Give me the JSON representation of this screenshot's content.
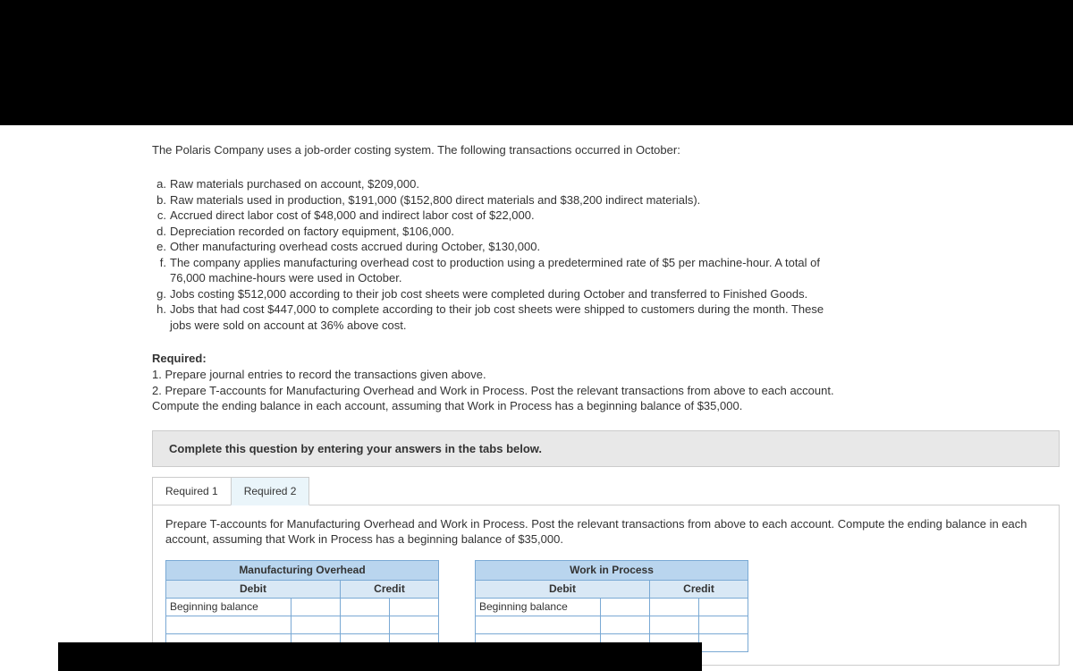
{
  "intro": "The Polaris Company uses a job-order costing system. The following transactions occurred in October:",
  "transactions": {
    "a": "Raw materials purchased on account, $209,000.",
    "b": "Raw materials used in production, $191,000 ($152,800 direct materials and $38,200 indirect materials).",
    "c": "Accrued direct labor cost of $48,000 and indirect labor cost of $22,000.",
    "d": "Depreciation recorded on factory equipment, $106,000.",
    "e": "Other manufacturing overhead costs accrued during October, $130,000.",
    "f1": "The company applies manufacturing overhead cost to production using a predetermined rate of $5 per machine-hour. A total of",
    "f2": "76,000 machine-hours were used in October.",
    "g": "Jobs costing $512,000 according to their job cost sheets were completed during October and transferred to Finished Goods.",
    "h1": "Jobs that had cost $447,000 to complete according to their job cost sheets were shipped to customers during the month. These",
    "h2": "jobs were sold on account at 36% above cost."
  },
  "required": {
    "heading": "Required:",
    "r1": "1. Prepare journal entries to record the transactions given above.",
    "r2": "2. Prepare T-accounts for Manufacturing Overhead and Work in Process. Post the relevant transactions from above to each account.",
    "r3": "Compute the ending balance in each account, assuming that Work in Process has a beginning balance of $35,000."
  },
  "grayBand": "Complete this question by entering your answers in the tabs below.",
  "tabs": {
    "t1": "Required 1",
    "t2": "Required 2"
  },
  "tabInstruction": "Prepare T-accounts for Manufacturing Overhead and Work in Process. Post the relevant transactions from above to each account. Compute the ending balance in each account, assuming that Work in Process has a beginning balance of $35,000.",
  "tAccount1": {
    "title": "Manufacturing Overhead",
    "debit": "Debit",
    "credit": "Credit",
    "begBal": "Beginning balance"
  },
  "tAccount2": {
    "title": "Work in Process",
    "debit": "Debit",
    "credit": "Credit",
    "begBal": "Beginning balance"
  },
  "colors": {
    "headerBg": "#b9d5ee",
    "subHeaderBg": "#d9e8f5",
    "borderBlue": "#7aa9d4",
    "activeTab": "#eaf5fa",
    "grayBand": "#e8e8e8"
  }
}
